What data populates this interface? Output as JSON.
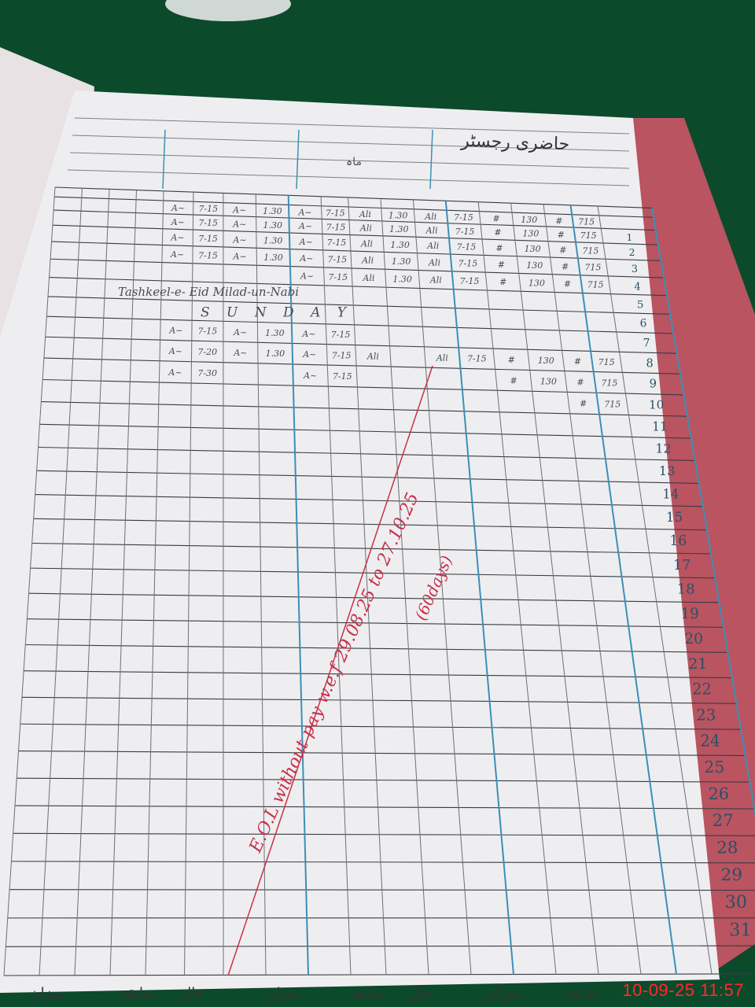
{
  "register": {
    "header_urdu": "حاضری رجسٹر",
    "header_note": "ماہ",
    "day_numbers": [
      "1",
      "2",
      "3",
      "4",
      "5",
      "6",
      "7",
      "8",
      "9",
      "10",
      "11",
      "12",
      "13",
      "14",
      "15",
      "16",
      "17",
      "18",
      "19",
      "20",
      "21",
      "22",
      "23",
      "24",
      "25",
      "26",
      "27",
      "28",
      "29",
      "30",
      "31"
    ],
    "rows": [
      [
        "A~",
        "7-15",
        "A~",
        "1.30",
        "A~",
        "7-15",
        "Ali",
        "1.30",
        "Ali",
        "7-15",
        "#",
        "130",
        "#",
        "715"
      ],
      [
        "A~",
        "7-15",
        "A~",
        "1.30",
        "A~",
        "7-15",
        "Ali",
        "1.30",
        "Ali",
        "7-15",
        "#",
        "130",
        "#",
        "715"
      ],
      [
        "A~",
        "7-15",
        "A~",
        "1.30",
        "A~",
        "7-15",
        "Ali",
        "1.30",
        "Ali",
        "7-15",
        "#",
        "130",
        "#",
        "715"
      ],
      [
        "A~",
        "7-15",
        "A~",
        "1.30",
        "A~",
        "7-15",
        "Ali",
        "1.30",
        "Ali",
        "7-15",
        "#",
        "130",
        "#",
        "715"
      ],
      [
        "",
        "",
        "",
        "",
        "A~",
        "7-15",
        "Ali",
        "1.30",
        "Ali",
        "7-15",
        "#",
        "130",
        "#",
        "715"
      ],
      [
        "",
        "",
        "",
        "",
        "",
        "",
        "",
        "",
        "",
        "",
        "",
        "",
        "",
        ""
      ],
      [
        "A~",
        "7-15",
        "A~",
        "1.30",
        "A~",
        "7-15",
        "",
        "",
        "",
        "",
        "",
        "",
        "",
        ""
      ],
      [
        "A~",
        "7-20",
        "A~",
        "1.30",
        "A~",
        "7-15",
        "Ali",
        "",
        "Ali",
        "7-15",
        "#",
        "130",
        "#",
        "715"
      ],
      [
        "A~",
        "7-30",
        "",
        "",
        "A~",
        "7-15",
        "",
        "",
        "",
        "",
        "#",
        "130",
        "#",
        "715"
      ],
      [
        "",
        "",
        "",
        "",
        "",
        "",
        "",
        "",
        "",
        "",
        "",
        "",
        "#",
        "715"
      ]
    ],
    "holiday_note": "Tashkeel-e- Eid Milad-un-Nabi",
    "sunday_note": "S U N D A Y",
    "eol_note": "E.O.L without pay w.e.f 29.08.25 to 27.10.25",
    "eol_days": "(60days)",
    "footer_labels": [
      "میزان",
      "سابقہ",
      "حال",
      "میزان",
      "سابقہ",
      "حال",
      "میزان",
      "سابقہ"
    ]
  },
  "camera_timestamp": "10-09-25  11:57",
  "colors": {
    "background": "#0c4a2c",
    "paper": "#eeeef0",
    "rule": "#3a3a44",
    "blue_rule": "#3d8fb5",
    "ink_red": "#c8304a"
  }
}
